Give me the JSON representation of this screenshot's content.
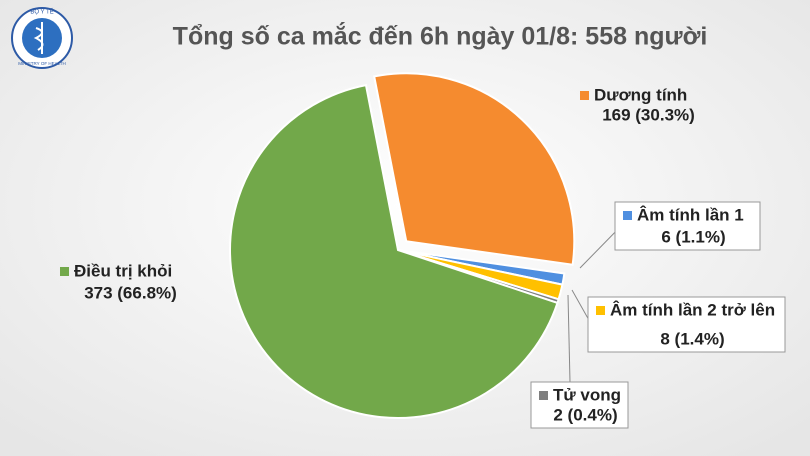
{
  "logo": {
    "top": "BỘ Y TẾ",
    "bottom": "MINISTRY OF HEALTH"
  },
  "chart_data": {
    "type": "pie",
    "title": "Tổng số ca mắc đến 6h ngày 01/8: 558 người",
    "categories": [
      "Dương tính",
      "Âm tính lần 1",
      "Âm tính lần 2 trở lên",
      "Tử vong",
      "Điều trị khỏi"
    ],
    "values": [
      169,
      6,
      8,
      2,
      373
    ],
    "value_labels": [
      "169 (30.3%)",
      "6 (1.1%)",
      "8 (1.4%)",
      "2 (0.4%)",
      "373 (66.8%)"
    ],
    "colors": [
      "#f58b2f",
      "#4f8fe0",
      "#ffc000",
      "#7f7f7f",
      "#72a84a"
    ]
  }
}
